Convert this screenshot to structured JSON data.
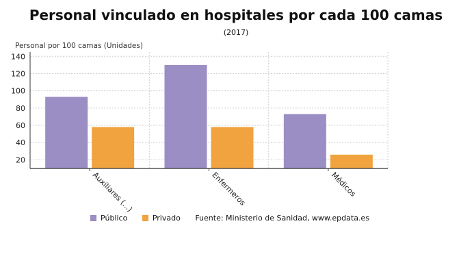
{
  "chart_data": {
    "type": "bar",
    "title": "Personal vinculado en hospitales por cada 100 camas",
    "subtitle": "(2017)",
    "ylabel": "Personal por 100 camas (Unidades)",
    "xlabel": "",
    "categories": [
      "Auxiliares (...)",
      "Enfermeros",
      "Médicos"
    ],
    "series": [
      {
        "name": "Público",
        "color": "#9b8ec4",
        "values": [
          93,
          130,
          73
        ]
      },
      {
        "name": "Privado",
        "color": "#f0a33f",
        "values": [
          58,
          58,
          26
        ]
      }
    ],
    "ylim": [
      10,
      145
    ],
    "yticks": [
      20,
      40,
      60,
      80,
      100,
      120,
      140
    ],
    "grid": true,
    "legend_position": "bottom",
    "source": "Fuente: Ministerio de Sanidad, www.epdata.es"
  }
}
